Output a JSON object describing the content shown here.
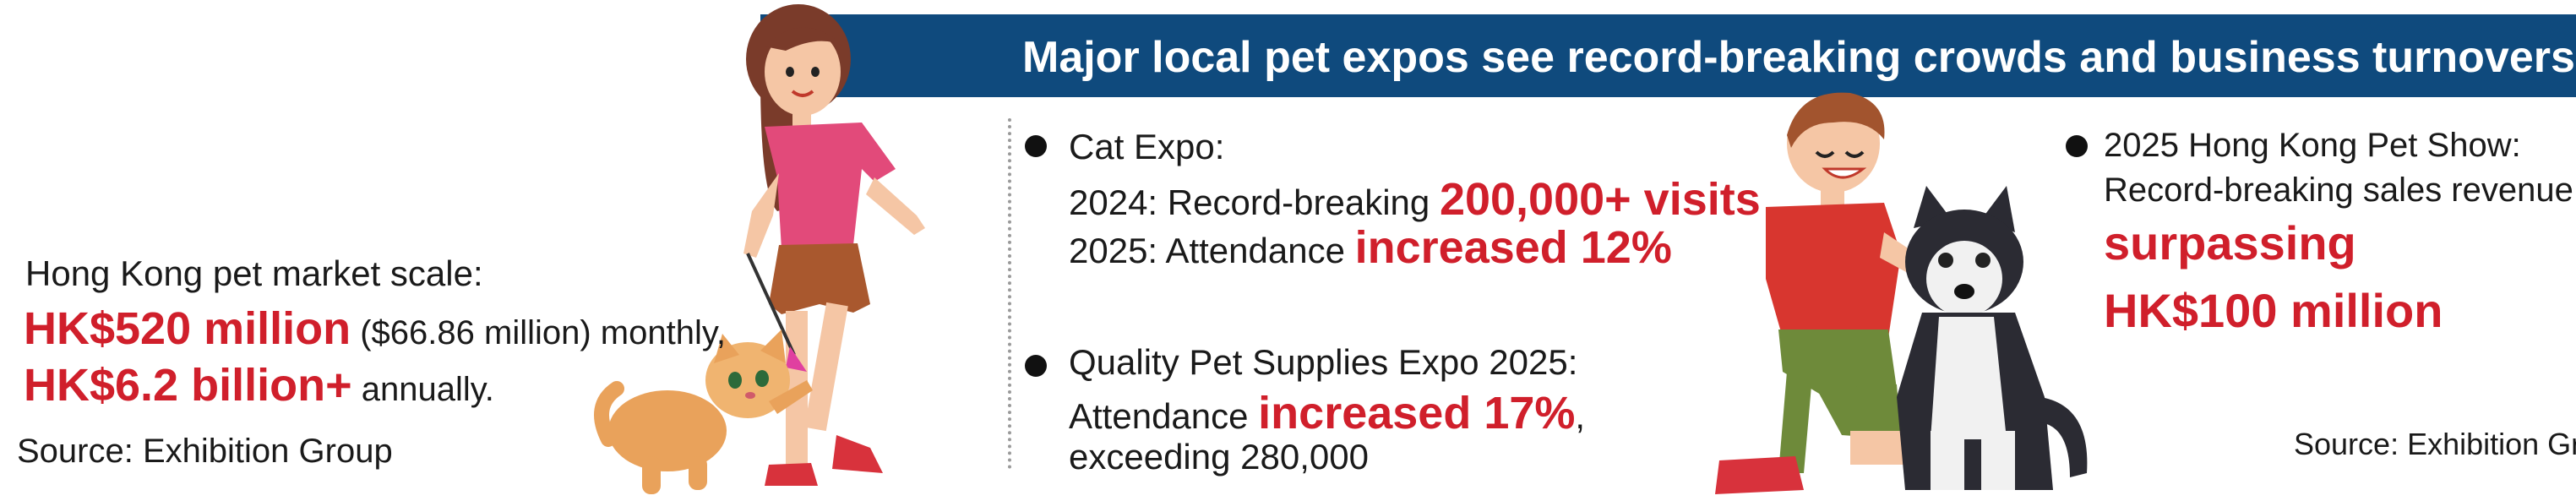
{
  "banner": {
    "title": "Major local pet expos see record-breaking crowds and business turnovers"
  },
  "market": {
    "heading": "Hong Kong pet market scale:",
    "monthly_value": "HK$520 million",
    "monthly_rest": " ($66.86 million) monthly,",
    "annual_value": "HK$6.2 billion+",
    "annual_rest": " annually.",
    "source": "Source: Exhibition Group"
  },
  "cat_expo": {
    "title": "Cat Expo:",
    "line1_prefix": "2024: Record-breaking ",
    "line1_highlight": "200,000+ visits",
    "line2_prefix": "2025: Attendance ",
    "line2_highlight": "increased 12%"
  },
  "quality_expo": {
    "title": "Quality Pet Supplies Expo 2025:",
    "line1_prefix": "Attendance ",
    "line1_highlight": "increased 17%",
    "line1_suffix": ",",
    "line2": "exceeding 280,000"
  },
  "pet_show": {
    "title": "2025 Hong Kong Pet Show:",
    "line1": "Record-breaking sales revenue",
    "highlight1": "surpassing",
    "highlight2": "HK$100 million",
    "source": "Source: Exhibition Group"
  },
  "colors": {
    "banner": "#0f4a7d",
    "highlight": "#d01f2b"
  },
  "icons": [
    "girl-illustration",
    "cat-illustration",
    "boy-illustration",
    "husky-illustration"
  ]
}
